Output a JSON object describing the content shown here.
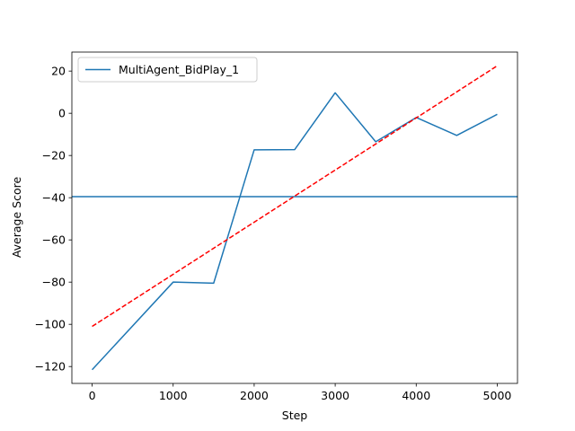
{
  "chart_data": {
    "type": "line",
    "title": "",
    "xlabel": "Step",
    "ylabel": "Average Score",
    "xlim": [
      -250,
      5250
    ],
    "ylim": [
      -128,
      29
    ],
    "xticks": [
      0,
      1000,
      2000,
      3000,
      4000,
      5000
    ],
    "yticks": [
      -120,
      -100,
      -80,
      -60,
      -40,
      -20,
      0,
      20
    ],
    "grid": false,
    "legend": {
      "position": "top-left",
      "entries": [
        "MultiAgent_BidPlay_1"
      ]
    },
    "series": [
      {
        "name": "MultiAgent_BidPlay_1",
        "color": "#1f77b4",
        "style": "solid",
        "x": [
          0,
          1000,
          1500,
          2000,
          2500,
          3000,
          3500,
          4000,
          4500,
          5000
        ],
        "y": [
          -121.5,
          -80,
          -80.5,
          -17.3,
          -17.2,
          9.7,
          -13.5,
          -2,
          -10.5,
          -0.5
        ]
      }
    ],
    "hlines": [
      {
        "y": -39.5,
        "color": "#1f77b4",
        "style": "solid"
      }
    ],
    "trendlines": [
      {
        "x": [
          0,
          5000
        ],
        "y": [
          -101,
          22.5
        ],
        "color": "#ff0000",
        "style": "dashed"
      }
    ]
  }
}
